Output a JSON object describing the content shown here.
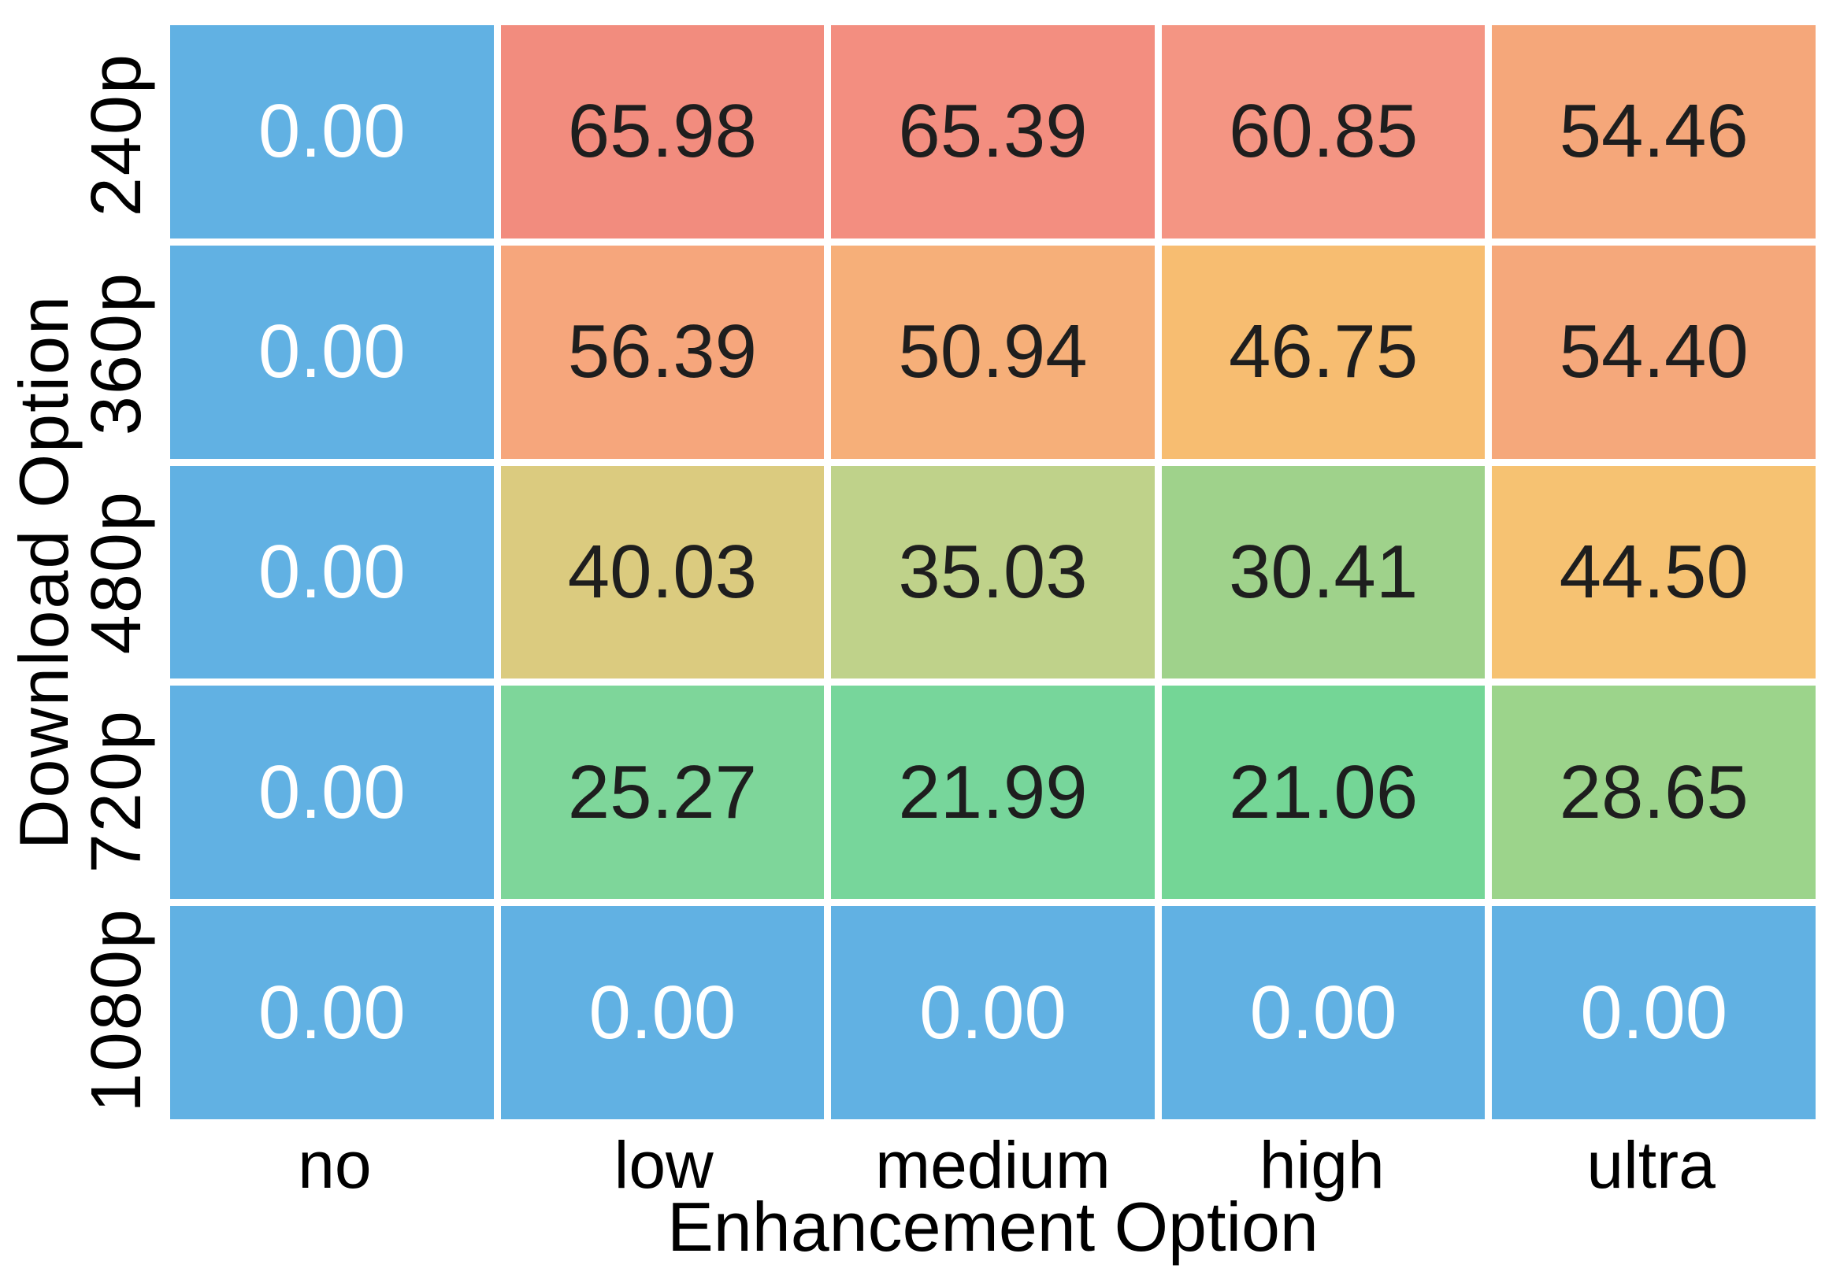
{
  "chart_data": {
    "type": "heatmap",
    "xlabel": "Enhancement Option",
    "ylabel": "Download Option",
    "x_categories": [
      "no",
      "low",
      "medium",
      "high",
      "ultra"
    ],
    "y_categories": [
      "240p",
      "360p",
      "480p",
      "720p",
      "1080p"
    ],
    "values": [
      [
        0.0,
        65.98,
        65.39,
        60.85,
        54.46
      ],
      [
        0.0,
        56.39,
        50.94,
        46.75,
        54.4
      ],
      [
        0.0,
        40.03,
        35.03,
        30.41,
        44.5
      ],
      [
        0.0,
        25.27,
        21.99,
        21.06,
        28.65
      ],
      [
        0.0,
        0.0,
        0.0,
        0.0,
        0.0
      ]
    ],
    "value_decimals": 2,
    "cell_colors": [
      [
        "#61b1e3",
        "#f28c7e",
        "#f38e80",
        "#f49583",
        "#f5a77a"
      ],
      [
        "#61b1e3",
        "#f6a67c",
        "#f6af79",
        "#f7bd71",
        "#f5a87b"
      ],
      [
        "#61b1e3",
        "#dbcb7f",
        "#bfd28a",
        "#9fd28b",
        "#f6c272"
      ],
      [
        "#61b1e3",
        "#7ed69a",
        "#77d69b",
        "#74d696",
        "#9cd48b"
      ],
      [
        "#61b1e3",
        "#61b1e3",
        "#61b1e3",
        "#61b1e3",
        "#61b1e3"
      ]
    ],
    "zero_cell_text_color": "#ffffff",
    "value_text_color": "#1e1e1e",
    "grid_gap_color": "#ffffff",
    "legend_position": "none",
    "grid": false
  }
}
